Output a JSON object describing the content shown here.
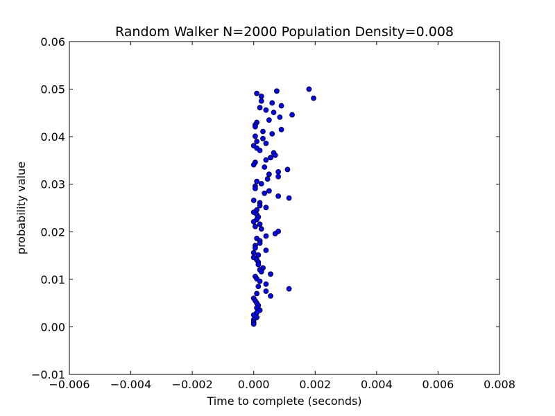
{
  "chart_data": {
    "type": "scatter",
    "title": "Random Walker N=2000 Population Density=0.008",
    "xlabel": "Time to complete (seconds)",
    "ylabel": "probability value",
    "xlim": [
      -0.006,
      0.008
    ],
    "ylim": [
      -0.01,
      0.06
    ],
    "xticks": [
      -0.006,
      -0.004,
      -0.002,
      0.0,
      0.002,
      0.004,
      0.006,
      0.008
    ],
    "xtick_labels": [
      "−0.006",
      "−0.004",
      "−0.002",
      "0.000",
      "0.002",
      "0.004",
      "0.006",
      "0.008"
    ],
    "yticks": [
      -0.01,
      0.0,
      0.01,
      0.02,
      0.03,
      0.04,
      0.05,
      0.06
    ],
    "ytick_labels": [
      "−0.01",
      "0.00",
      "0.01",
      "0.02",
      "0.03",
      "0.04",
      "0.05",
      "0.06"
    ],
    "grid": false,
    "marker_color": "#0000ff",
    "series": [
      {
        "points": [
          [
            0.0018,
            0.05
          ],
          [
            0.00195,
            0.0481
          ],
          [
            0.00075,
            0.0496
          ],
          [
            0.0001,
            0.0491
          ],
          [
            0.00025,
            0.0485
          ],
          [
            0.00025,
            0.0475
          ],
          [
            0.0006,
            0.0471
          ],
          [
            0.0009,
            0.0465
          ],
          [
            0.0002,
            0.0461
          ],
          [
            0.0004,
            0.0456
          ],
          [
            0.00065,
            0.0451
          ],
          [
            0.00125,
            0.0446
          ],
          [
            0.00085,
            0.0441
          ],
          [
            0.0005,
            0.0435
          ],
          [
            0.0001,
            0.043
          ],
          [
            5e-05,
            0.0425
          ],
          [
            5e-05,
            0.0421
          ],
          [
            0.0009,
            0.0415
          ],
          [
            0.0003,
            0.0411
          ],
          [
            0.0006,
            0.0406
          ],
          [
            5e-05,
            0.0401
          ],
          [
            0.0003,
            0.0396
          ],
          [
            0.0001,
            0.039
          ],
          [
            0.0004,
            0.0386
          ],
          [
            0.0,
            0.0381
          ],
          [
            0.0001,
            0.0376
          ],
          [
            0.0002,
            0.0371
          ],
          [
            0.00065,
            0.0366
          ],
          [
            0.0007,
            0.0361
          ],
          [
            0.00055,
            0.0356
          ],
          [
            0.0004,
            0.0351
          ],
          [
            5e-05,
            0.0346
          ],
          [
            0.0,
            0.0341
          ],
          [
            0.00035,
            0.0336
          ],
          [
            0.0011,
            0.0331
          ],
          [
            0.0008,
            0.0326
          ],
          [
            0.0005,
            0.0321
          ],
          [
            0.0008,
            0.0316
          ],
          [
            0.00045,
            0.0311
          ],
          [
            0.0001,
            0.0306
          ],
          [
            0.00025,
            0.0301
          ],
          [
            5e-05,
            0.0296
          ],
          [
            5e-05,
            0.0291
          ],
          [
            0.0005,
            0.0286
          ],
          [
            0.00035,
            0.0281
          ],
          [
            0.0008,
            0.0275
          ],
          [
            0.00115,
            0.0271
          ],
          [
            0.0,
            0.0266
          ],
          [
            0.0002,
            0.0261
          ],
          [
            0.0002,
            0.0255
          ],
          [
            0.0004,
            0.0251
          ],
          [
            0.0001,
            0.0246
          ],
          [
            0.0,
            0.0241
          ],
          [
            0.0001,
            0.0236
          ],
          [
            0.00015,
            0.0231
          ],
          [
            0.0001,
            0.0226
          ],
          [
            0.0,
            0.0221
          ],
          [
            0.0002,
            0.0216
          ],
          [
            5e-05,
            0.0211
          ],
          [
            0.00025,
            0.0206
          ],
          [
            0.0008,
            0.0201
          ],
          [
            0.0007,
            0.0196
          ],
          [
            0.0004,
            0.0191
          ],
          [
            0.0001,
            0.0186
          ],
          [
            0.0002,
            0.0181
          ],
          [
            0.0002,
            0.0176
          ],
          [
            5e-05,
            0.0171
          ],
          [
            5e-05,
            0.0166
          ],
          [
            0.0004,
            0.0161
          ],
          [
            0.0,
            0.0156
          ],
          [
            0.00015,
            0.0151
          ],
          [
            0.0,
            0.0146
          ],
          [
            0.0001,
            0.0141
          ],
          [
            0.00015,
            0.0136
          ],
          [
            0.00015,
            0.0131
          ],
          [
            0.0003,
            0.0124
          ],
          [
            0.0002,
            0.012
          ],
          [
            0.00025,
            0.0116
          ],
          [
            0.00055,
            0.0111
          ],
          [
            5e-05,
            0.0106
          ],
          [
            0.0001,
            0.0101
          ],
          [
            0.0002,
            0.0096
          ],
          [
            0.0004,
            0.009
          ],
          [
            0.00015,
            0.0085
          ],
          [
            0.00115,
            0.008
          ],
          [
            0.0004,
            0.0075
          ],
          [
            0.0001,
            0.007
          ],
          [
            0.00055,
            0.0065
          ],
          [
            0.0,
            0.006
          ],
          [
            5e-05,
            0.0055
          ],
          [
            0.0001,
            0.005
          ],
          [
            0.00015,
            0.0045
          ],
          [
            0.0001,
            0.004
          ],
          [
            0.0002,
            0.0035
          ],
          [
            0.0001,
            0.003
          ],
          [
            0.0,
            0.0025
          ],
          [
            0.0001,
            0.002
          ],
          [
            0.0,
            0.0015
          ],
          [
            0.0,
            0.001
          ],
          [
            0.0,
            0.0006
          ]
        ]
      }
    ]
  }
}
